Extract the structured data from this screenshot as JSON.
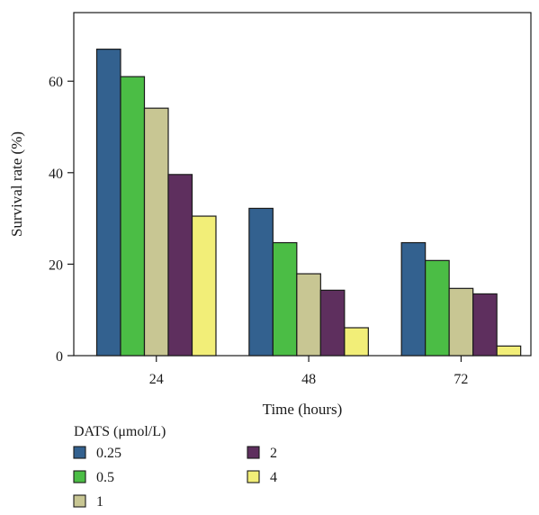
{
  "chart_data": {
    "type": "bar",
    "title": "",
    "xlabel": "Time (hours)",
    "ylabel": "Survival rate (%)",
    "ylim": [
      0,
      75
    ],
    "yticks": [
      "0",
      "20",
      "40",
      "60"
    ],
    "categories": [
      "24",
      "48",
      "72"
    ],
    "legend": {
      "title": "DATS (μmol/L)",
      "placement": "bottom-left"
    },
    "series": [
      {
        "name": "0.25",
        "color": "#33618f",
        "values": [
          67,
          32.2,
          24.7
        ]
      },
      {
        "name": "0.5",
        "color": "#4bbd45",
        "values": [
          61,
          24.7,
          20.8
        ]
      },
      {
        "name": "1",
        "color": "#c8c693",
        "values": [
          54.1,
          17.9,
          14.7
        ]
      },
      {
        "name": "2",
        "color": "#5e2f5e",
        "values": [
          39.6,
          14.3,
          13.5
        ]
      },
      {
        "name": "4",
        "color": "#f2ee78",
        "values": [
          30.5,
          6.1,
          2.1
        ]
      }
    ]
  }
}
